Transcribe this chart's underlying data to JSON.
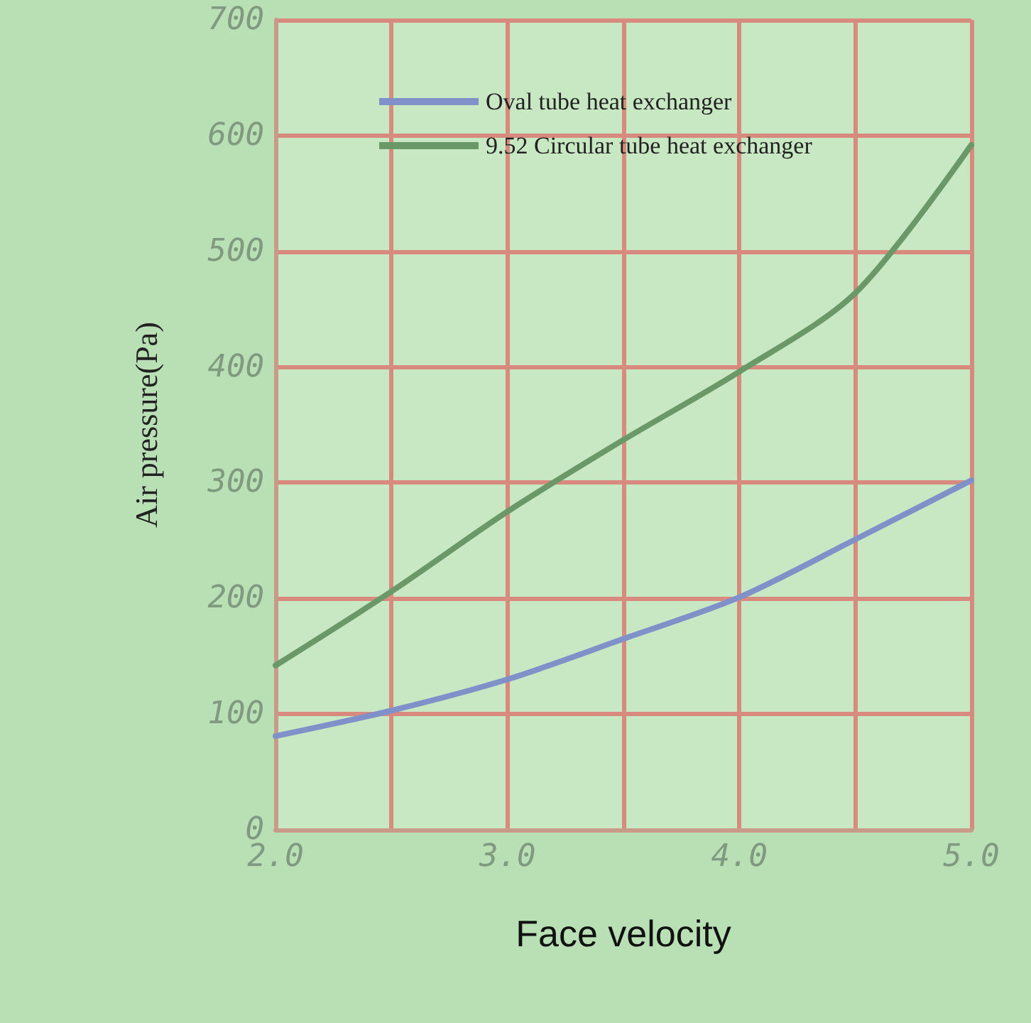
{
  "chart_data": {
    "type": "line",
    "xlabel": "Face velocity",
    "ylabel": "Air pressure(Pa)",
    "x": [
      2.0,
      2.5,
      3.0,
      3.5,
      4.0,
      4.5,
      5.0
    ],
    "series": [
      {
        "name": "Oval tube heat exchanger",
        "color": "#8090c8",
        "values": [
          81,
          103,
          130,
          165,
          201,
          251,
          302
        ]
      },
      {
        "name": "9.52 Circular tube heat exchanger",
        "color": "#6a9868",
        "values": [
          142,
          206,
          275,
          337,
          396,
          464,
          592
        ]
      }
    ],
    "xlim": [
      2.0,
      5.0
    ],
    "xticks": [
      {
        "value": 2.0,
        "label": "2.0"
      },
      {
        "value": 2.5,
        "label": null
      },
      {
        "value": 3.0,
        "label": "3.0"
      },
      {
        "value": 3.5,
        "label": null
      },
      {
        "value": 4.0,
        "label": "4.0"
      },
      {
        "value": 4.5,
        "label": null
      },
      {
        "value": 5.0,
        "label": "5.0"
      }
    ],
    "ylim": [
      0,
      700
    ],
    "yticks": [
      0,
      100,
      200,
      300,
      400,
      500,
      600,
      700
    ],
    "grid": true,
    "legend": "top",
    "marker": "none",
    "line_style": "solid"
  }
}
